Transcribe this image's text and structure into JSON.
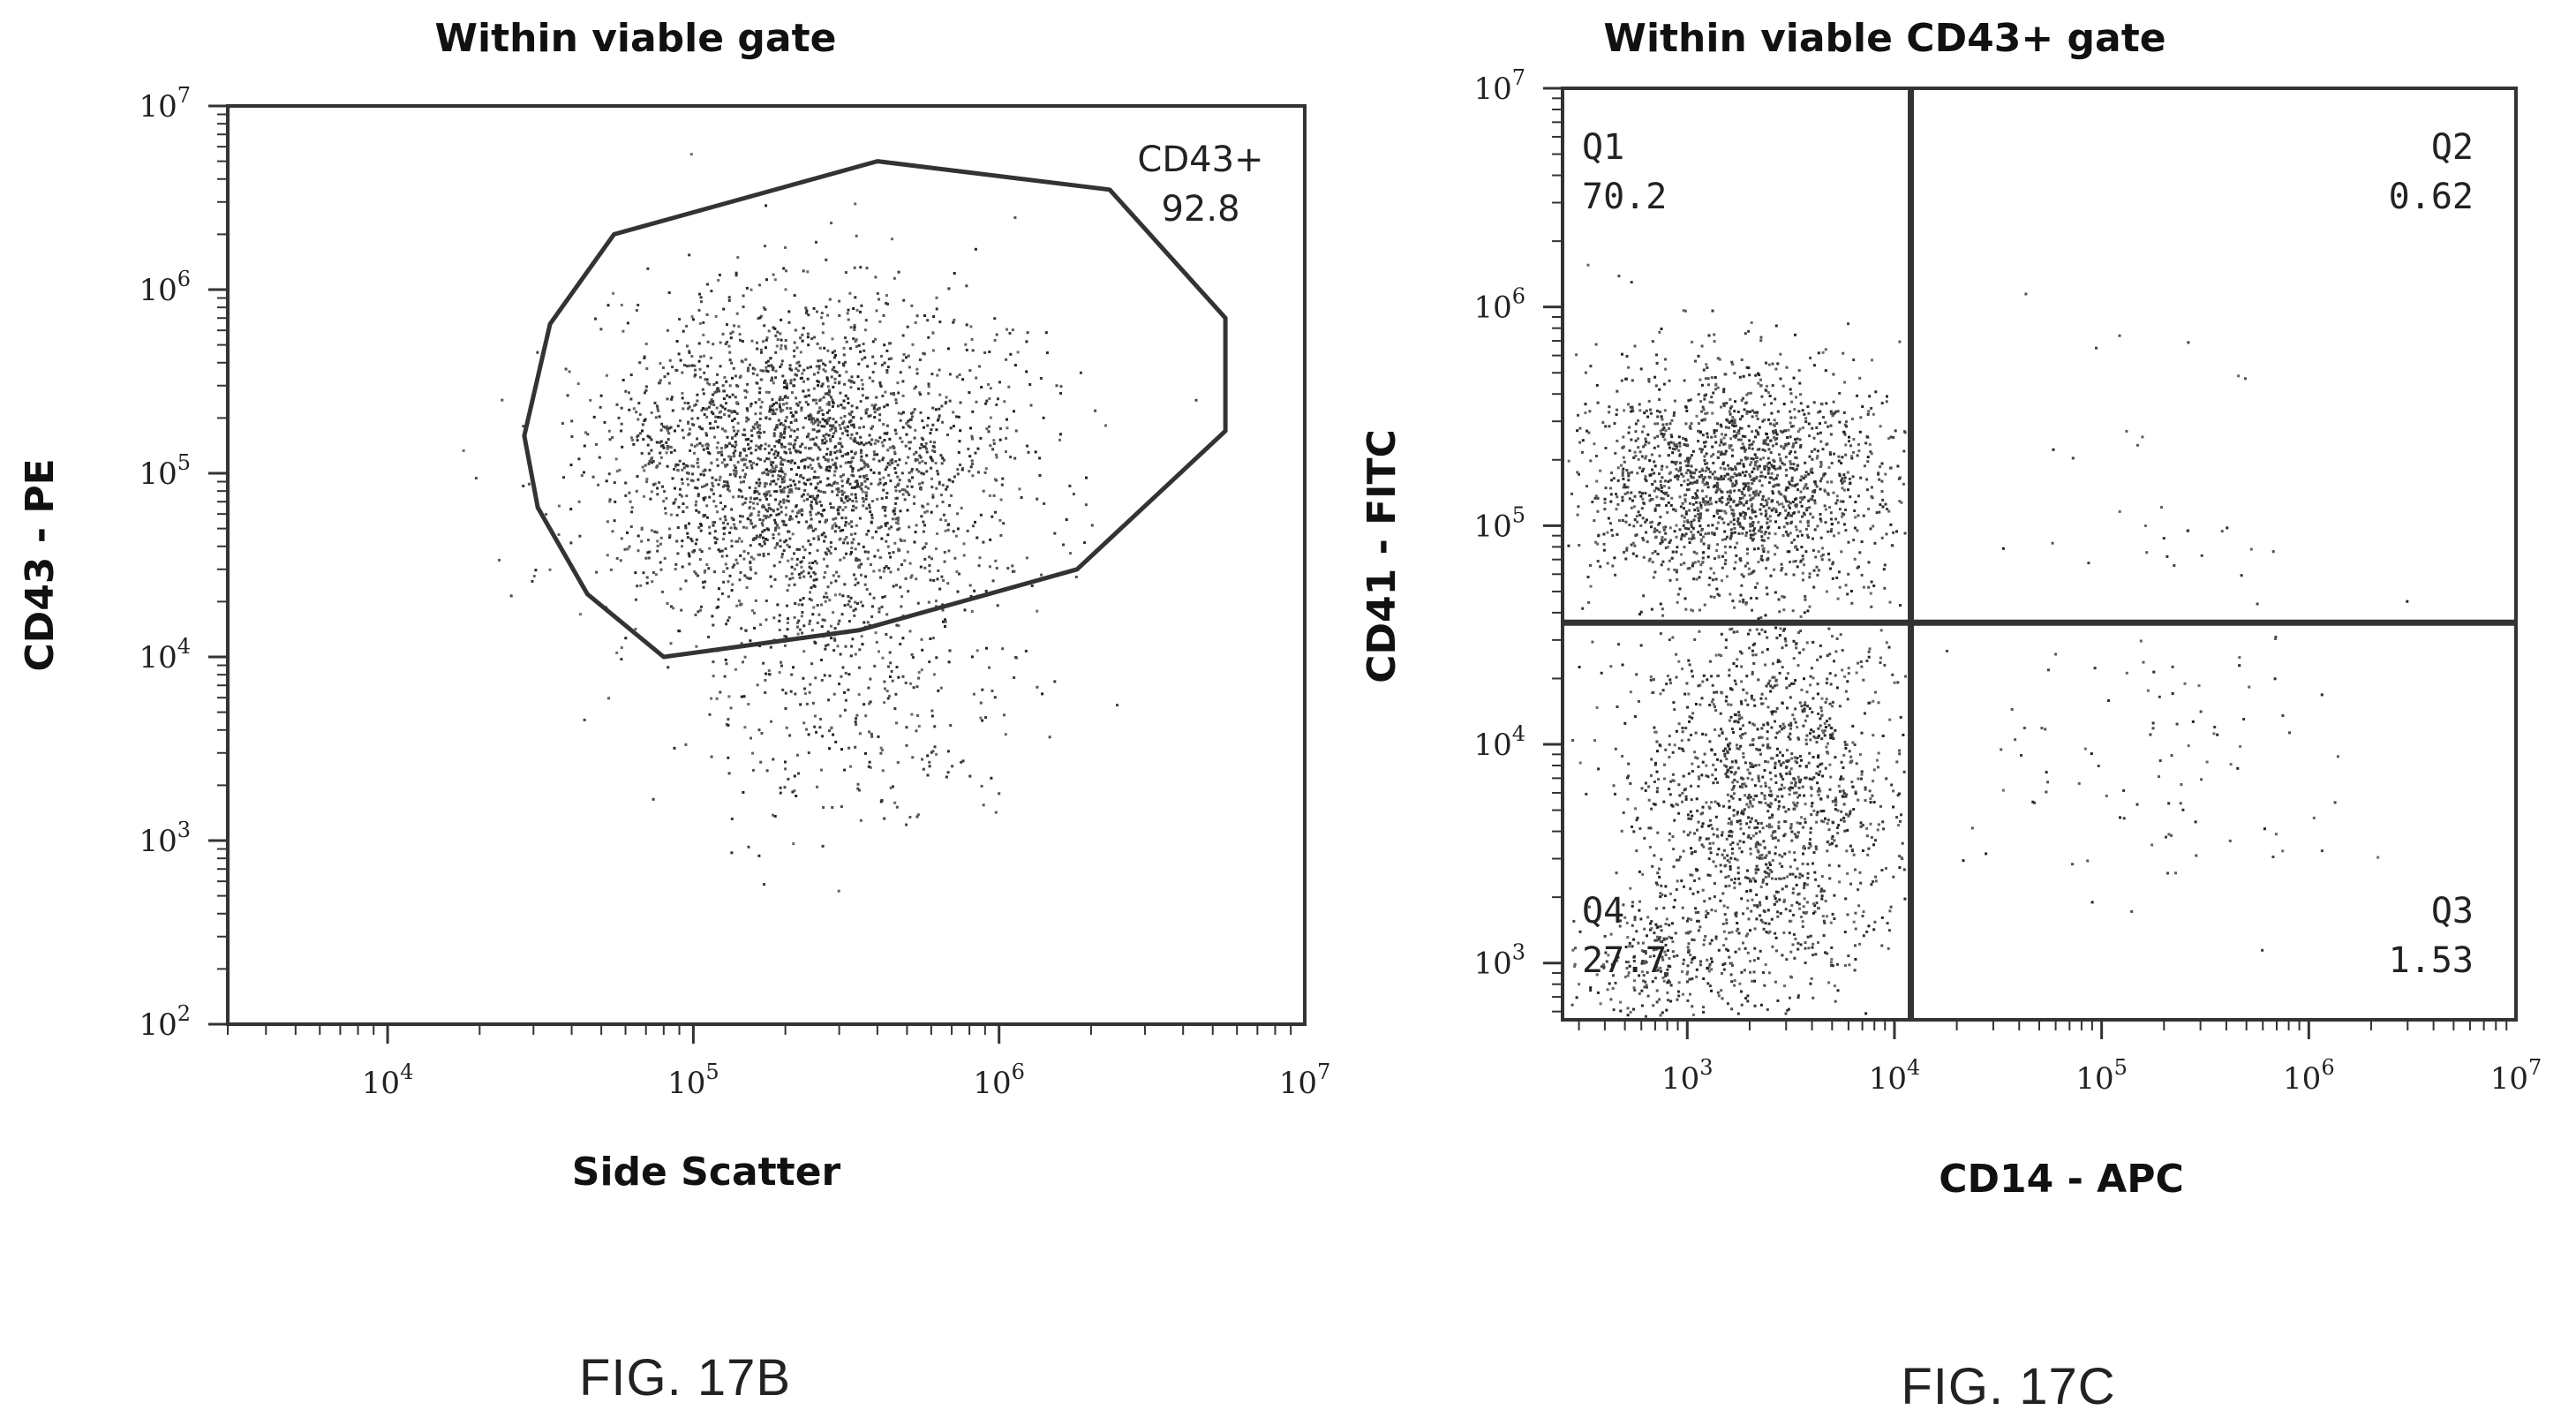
{
  "chart_data": [
    {
      "type": "scatter",
      "figure_label": "FIG. 17B",
      "title": "Within viable gate",
      "xlabel": "Side Scatter",
      "ylabel": "CD43 - PE",
      "x_scale": "log",
      "y_scale": "log",
      "xlim": [
        3000,
        10000000
      ],
      "ylim": [
        100,
        10000000
      ],
      "x_ticks": [
        {
          "base": "10",
          "exp": "4",
          "value": 10000
        },
        {
          "base": "10",
          "exp": "5",
          "value": 100000
        },
        {
          "base": "10",
          "exp": "6",
          "value": 1000000
        },
        {
          "base": "10",
          "exp": "7",
          "value": 10000000
        }
      ],
      "y_ticks": [
        {
          "base": "10",
          "exp": "2",
          "value": 100
        },
        {
          "base": "10",
          "exp": "3",
          "value": 1000
        },
        {
          "base": "10",
          "exp": "4",
          "value": 10000
        },
        {
          "base": "10",
          "exp": "5",
          "value": 100000
        },
        {
          "base": "10",
          "exp": "6",
          "value": 1000000
        },
        {
          "base": "10",
          "exp": "7",
          "value": 10000000
        }
      ],
      "gate": {
        "name": "CD43+",
        "percent": "92.8",
        "polygon": [
          [
            55000,
            2000000
          ],
          [
            34000,
            650000
          ],
          [
            28000,
            160000
          ],
          [
            31000,
            65000
          ],
          [
            45000,
            22000
          ],
          [
            80000,
            10000
          ],
          [
            350000,
            14000
          ],
          [
            1800000,
            30000
          ],
          [
            5500000,
            170000
          ],
          [
            5500000,
            700000
          ],
          [
            2300000,
            3500000
          ],
          [
            400000,
            5000000
          ]
        ]
      },
      "populations": [
        {
          "mx": 5.35,
          "my": 5.1,
          "sx": 0.33,
          "sy": 0.42,
          "n": 2600
        },
        {
          "mx": 5.5,
          "my": 3.9,
          "sx": 0.28,
          "sy": 0.45,
          "n": 420
        }
      ],
      "colors": {
        "axis": "#333333",
        "gate": "#333333",
        "dots": "#222222"
      }
    },
    {
      "type": "scatter",
      "figure_label": "FIG. 17C",
      "title": "Within viable CD43+ gate",
      "xlabel": "CD14 - APC",
      "ylabel": "CD41 - FITC",
      "x_scale": "log",
      "y_scale": "log",
      "xlim": [
        250,
        10000000
      ],
      "ylim": [
        550,
        10000000
      ],
      "x_ticks": [
        {
          "base": "10",
          "exp": "3",
          "value": 1000
        },
        {
          "base": "10",
          "exp": "4",
          "value": 10000
        },
        {
          "base": "10",
          "exp": "5",
          "value": 100000
        },
        {
          "base": "10",
          "exp": "6",
          "value": 1000000
        },
        {
          "base": "10",
          "exp": "7",
          "value": 10000000
        }
      ],
      "y_ticks": [
        {
          "base": "10",
          "exp": "3",
          "value": 1000
        },
        {
          "base": "10",
          "exp": "4",
          "value": 10000
        },
        {
          "base": "10",
          "exp": "5",
          "value": 100000
        },
        {
          "base": "10",
          "exp": "6",
          "value": 1000000
        },
        {
          "base": "10",
          "exp": "7",
          "value": 10000000
        }
      ],
      "quadrant_divider": {
        "x": 12000,
        "y": 36000
      },
      "quadrants": [
        {
          "label": "Q1",
          "percent": "70.2",
          "position": "top-left"
        },
        {
          "label": "Q2",
          "percent": "0.62",
          "position": "top-right"
        },
        {
          "label": "Q3",
          "percent": "1.53",
          "position": "bottom-right"
        },
        {
          "label": "Q4",
          "percent": "27.7",
          "position": "bottom-left"
        }
      ],
      "populations": [
        {
          "mx": 3.25,
          "my": 5.2,
          "sx": 0.4,
          "sy": 0.28,
          "n": 1900,
          "minX": 2.4,
          "maxX": 4.05,
          "minY": 4.58,
          "maxY": 6.2
        },
        {
          "mx": 3.4,
          "my": 3.75,
          "sx": 0.35,
          "sy": 0.48,
          "n": 1700,
          "minX": 2.4,
          "maxX": 4.05,
          "minY": 2.75,
          "maxY": 4.54
        },
        {
          "mx": 2.85,
          "my": 2.95,
          "sx": 0.22,
          "sy": 0.16,
          "n": 260,
          "minX": 2.4,
          "maxX": 4.05,
          "minY": 2.75,
          "maxY": 4.54
        },
        {
          "mx": 5.2,
          "my": 5.0,
          "sx": 0.45,
          "sy": 0.4,
          "n": 40,
          "minX": 4.1,
          "maxX": 6.6,
          "minY": 4.6,
          "maxY": 6.3
        },
        {
          "mx": 5.2,
          "my": 3.9,
          "sx": 0.45,
          "sy": 0.35,
          "n": 100,
          "minX": 4.1,
          "maxX": 6.6,
          "minY": 2.9,
          "maxY": 4.5
        }
      ],
      "colors": {
        "axis": "#333333",
        "divider": "#333333",
        "dots": "#222222"
      }
    }
  ]
}
